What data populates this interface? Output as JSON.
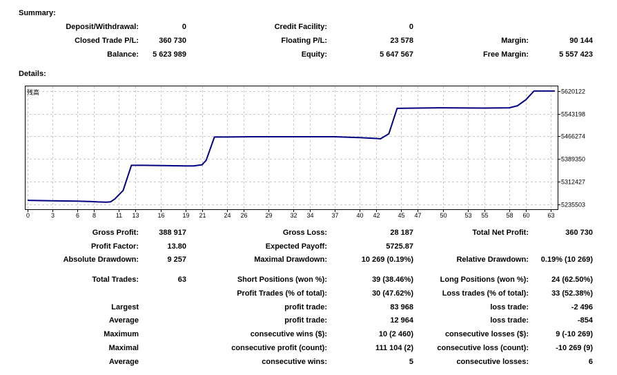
{
  "summary": {
    "title": "Summary:",
    "rows": [
      [
        {
          "label": "Deposit/Withdrawal:",
          "value": "0"
        },
        {
          "label": "Credit Facility:",
          "value": "0"
        },
        {
          "label": "",
          "value": ""
        }
      ],
      [
        {
          "label": "Closed Trade P/L:",
          "value": "360 730"
        },
        {
          "label": "Floating P/L:",
          "value": "23 578"
        },
        {
          "label": "Margin:",
          "value": "90 144"
        }
      ],
      [
        {
          "label": "Balance:",
          "value": "5 623 989"
        },
        {
          "label": "Equity:",
          "value": "5 647 567"
        },
        {
          "label": "Free Margin:",
          "value": "5 557 423"
        }
      ]
    ]
  },
  "details": {
    "title": "Details:",
    "rows": [
      [
        {
          "label": "Gross Profit:",
          "value": "388 917"
        },
        {
          "label": "Gross Loss:",
          "value": "28 187"
        },
        {
          "label": "Total Net Profit:",
          "value": "360 730"
        }
      ],
      [
        {
          "label": "Profit Factor:",
          "value": "13.80"
        },
        {
          "label": "Expected Payoff:",
          "value": "5725.87"
        },
        {
          "label": "",
          "value": ""
        }
      ],
      [
        {
          "label": "Absolute Drawdown:",
          "value": "9 257"
        },
        {
          "label": "Maximal Drawdown:",
          "value": "10 269 (0.19%)"
        },
        {
          "label": "Relative Drawdown:",
          "value": "0.19% (10 269)"
        }
      ],
      [
        {
          "label": "Total Trades:",
          "value": "63"
        },
        {
          "label": "Short Positions (won %):",
          "value": "39 (38.46%)"
        },
        {
          "label": "Long Positions (won %):",
          "value": "24 (62.50%)"
        }
      ],
      [
        {
          "label": "",
          "value": ""
        },
        {
          "label": "Profit Trades (% of total):",
          "value": "30 (47.62%)"
        },
        {
          "label": "Loss trades (% of total):",
          "value": "33 (52.38%)"
        }
      ],
      [
        {
          "label": "Largest",
          "value": ""
        },
        {
          "label": "profit trade:",
          "value": "83 968"
        },
        {
          "label": "loss trade:",
          "value": "-2 496"
        }
      ],
      [
        {
          "label": "Average",
          "value": ""
        },
        {
          "label": "profit trade:",
          "value": "12 964"
        },
        {
          "label": "loss trade:",
          "value": "-854"
        }
      ],
      [
        {
          "label": "Maximum",
          "value": ""
        },
        {
          "label": "consecutive wins ($):",
          "value": "10 (2 460)"
        },
        {
          "label": "consecutive losses ($):",
          "value": "9 (-10 269)"
        }
      ],
      [
        {
          "label": "Maximal",
          "value": ""
        },
        {
          "label": "consecutive profit (count):",
          "value": "111 104 (2)"
        },
        {
          "label": "consecutive loss (count):",
          "value": "-10 269 (9)"
        }
      ],
      [
        {
          "label": "Average",
          "value": ""
        },
        {
          "label": "consecutive wins:",
          "value": "5"
        },
        {
          "label": "consecutive losses:",
          "value": "6"
        }
      ]
    ]
  },
  "chart_data": {
    "type": "line",
    "title": "",
    "legend_glyph": "残高",
    "xlabel": "",
    "ylabel": "",
    "x_ticks": [
      0,
      3,
      6,
      8,
      11,
      13,
      16,
      19,
      21,
      24,
      26,
      29,
      32,
      34,
      37,
      40,
      42,
      45,
      47,
      50,
      53,
      55,
      58,
      60,
      63
    ],
    "y_ticks": [
      5235503,
      5312427,
      5389350,
      5466274,
      5543198,
      5620122
    ],
    "xlim": [
      0,
      63.5
    ],
    "ylim": [
      5224000,
      5631000
    ],
    "grid": true,
    "line_color": "#000080",
    "series": [
      {
        "name": "",
        "x": [
          0,
          3,
          6,
          7.5,
          8.5,
          9.5,
          10,
          10.5,
          11.5,
          12.5,
          14,
          17,
          19,
          20,
          21,
          21.5,
          22.5,
          24,
          27,
          30,
          34,
          37,
          40,
          42,
          42.5,
          43.5,
          44.5,
          47,
          50,
          55,
          58,
          59,
          60,
          61,
          63.5
        ],
        "y": [
          5249500,
          5248000,
          5247000,
          5245500,
          5244000,
          5243500,
          5244500,
          5254000,
          5283000,
          5368000,
          5368000,
          5367000,
          5366000,
          5366000,
          5370000,
          5385000,
          5464000,
          5464000,
          5465000,
          5465000,
          5465000,
          5465000,
          5462000,
          5459000,
          5458000,
          5475000,
          5561000,
          5562000,
          5563000,
          5562000,
          5563000,
          5570000,
          5590000,
          5620000,
          5620122
        ]
      }
    ]
  }
}
